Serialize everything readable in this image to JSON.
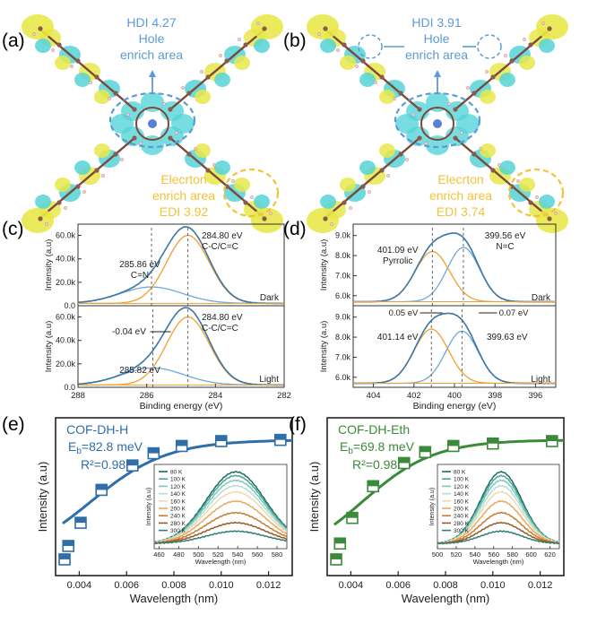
{
  "panels": {
    "a": {
      "label": "(a)",
      "hdi": "HDI 4.27",
      "hole_line1": "Hole",
      "hole_line2": "enrich area",
      "elec_line1": "Elecrton",
      "elec_line2": "enrich area",
      "edi": "EDI 3.92"
    },
    "b": {
      "label": "(b)",
      "hdi": "HDI 3.91",
      "hole_line1": "Hole",
      "hole_line2": "enrich area",
      "elec_line1": "Elecrton",
      "elec_line2": "enrich area",
      "edi": "EDI 3.74"
    }
  },
  "colors": {
    "hole": "#5b9bd5",
    "electron": "#f2c237",
    "fit": "#3d78a8",
    "comp_blue": "#6fa8dc",
    "comp_orange": "#f0a030",
    "raw": "#999999",
    "green": "#3a8a3a"
  },
  "chart_data": [
    {
      "id": "c",
      "type": "line",
      "label": "(c)",
      "xlabel": "Binding energy (eV)",
      "ylabel": "Intensity (a.u)",
      "xlim": [
        288,
        282
      ],
      "xticks": [
        "288",
        "286",
        "284",
        "282"
      ],
      "subplots": [
        {
          "condition": "Dark",
          "ylim": [
            0,
            65000
          ],
          "yticks": [
            "0.0",
            "20.0k",
            "40.0k",
            "60.0k"
          ],
          "peaks": [
            {
              "center": 284.8,
              "amp": 58000,
              "width": 0.62
            },
            {
              "center": 285.86,
              "amp": 14000,
              "width": 0.9
            }
          ],
          "baseline": 2000,
          "annotations": [
            "284.80 eV",
            "C-C/C=C",
            "285.86 eV",
            "C=N"
          ]
        },
        {
          "condition": "Light",
          "ylim": [
            0,
            65000
          ],
          "yticks": [
            "0.0",
            "20.0k",
            "40.0k",
            "60.0k"
          ],
          "peaks": [
            {
              "center": 284.8,
              "amp": 58000,
              "width": 0.62
            },
            {
              "center": 285.82,
              "amp": 14500,
              "width": 0.9
            }
          ],
          "baseline": 2000,
          "annotations": [
            "284.80 eV",
            "C-C/C=C",
            "285.82 eV",
            "-0.04 eV"
          ]
        }
      ]
    },
    {
      "id": "d",
      "type": "line",
      "label": "(d)",
      "xlabel": "Binding energy (eV)",
      "ylabel": "Intensity (a.u)",
      "xlim": [
        405,
        395
      ],
      "xticks": [
        "404",
        "402",
        "400",
        "398",
        "396"
      ],
      "subplots": [
        {
          "condition": "Dark",
          "ylim": [
            5500,
            9300
          ],
          "yticks": [
            "6.0k",
            "7.0k",
            "8.0k",
            "9.0k"
          ],
          "peaks": [
            {
              "center": 401.09,
              "amp": 2500,
              "width": 0.85
            },
            {
              "center": 399.56,
              "amp": 2700,
              "width": 0.8
            }
          ],
          "baseline": 5700,
          "annotations": [
            "401.09 eV",
            "Pyrrolic",
            "399.56 eV",
            "N=C"
          ]
        },
        {
          "condition": "Light",
          "ylim": [
            5500,
            9300
          ],
          "yticks": [
            "6.0k",
            "7.0k",
            "8.0k",
            "9.0k"
          ],
          "peaks": [
            {
              "center": 401.14,
              "amp": 2700,
              "width": 0.85
            },
            {
              "center": 399.63,
              "amp": 2600,
              "width": 0.8
            }
          ],
          "baseline": 5700,
          "annotations": [
            "0.05 eV",
            "0.07 eV",
            "401.14 eV",
            "399.63 eV"
          ]
        }
      ]
    },
    {
      "id": "e",
      "type": "scatter",
      "label": "(e)",
      "name": "COF-DH-H",
      "eb_prefix": "E",
      "eb_sub": "b",
      "eb_value": "=82.8 meV",
      "r2": "R²=0.98",
      "xlabel": "Wavelength (nm)",
      "ylabel": "Intensity (a.u)",
      "xlim": [
        0.003,
        0.013
      ],
      "xticks": [
        "0.004",
        "0.006",
        "0.008",
        "0.010",
        "0.012"
      ],
      "x": [
        0.00338,
        0.00354,
        0.00406,
        0.00494,
        0.00625,
        0.00714,
        0.00833,
        0.01,
        0.0125
      ],
      "y": [
        0.03,
        0.14,
        0.33,
        0.6,
        0.8,
        0.9,
        0.96,
        1.0,
        1.01
      ],
      "fit": {
        "E": 82.8
      },
      "inset": {
        "xlabel": "Wavelength (nm)",
        "ylabel": "Intensity (a.u)",
        "xlim": [
          455,
          590
        ],
        "xticks": [
          "460",
          "480",
          "500",
          "520",
          "540",
          "560",
          "580"
        ],
        "center": 538,
        "sigma": 30,
        "series": [
          {
            "name": "80 K",
            "color": "#1f6b5f",
            "amp": 0.93
          },
          {
            "name": "100 K",
            "color": "#4aa698",
            "amp": 0.88
          },
          {
            "name": "120 K",
            "color": "#7cc8bd",
            "amp": 0.82
          },
          {
            "name": "140 K",
            "color": "#b2ded5",
            "amp": 0.75
          },
          {
            "name": "160 K",
            "color": "#f0d9b0",
            "amp": 0.67
          },
          {
            "name": "200 K",
            "color": "#e8a860",
            "amp": 0.55
          },
          {
            "name": "240 K",
            "color": "#c87a30",
            "amp": 0.4
          },
          {
            "name": "280 K",
            "color": "#9a5a25",
            "amp": 0.27
          },
          {
            "name": "300 K",
            "color": "#2f7f76",
            "amp": 0.16
          }
        ]
      }
    },
    {
      "id": "f",
      "type": "scatter",
      "label": "(f)",
      "name": "COF-DH-Eth",
      "eb_prefix": "E",
      "eb_sub": "b",
      "eb_value": "=69.8 meV",
      "r2": "R²=0.98",
      "xlabel": "Wavelength (nm)",
      "ylabel": "Intensity (a.u)",
      "xlim": [
        0.003,
        0.013
      ],
      "xticks": [
        "0.004",
        "0.006",
        "0.008",
        "0.010",
        "0.012"
      ],
      "x": [
        0.00338,
        0.00354,
        0.00406,
        0.00494,
        0.00625,
        0.00714,
        0.00833,
        0.01,
        0.0125
      ],
      "y": [
        0.03,
        0.16,
        0.37,
        0.63,
        0.82,
        0.91,
        0.96,
        0.98,
        1.0
      ],
      "fit": {
        "E": 69.8
      },
      "inset": {
        "xlabel": "Wavelength (nm)",
        "ylabel": "Intensity (a.u)",
        "xlim": [
          500,
          630
        ],
        "xticks": [
          "500",
          "520",
          "540",
          "560",
          "580",
          "600",
          "620"
        ],
        "center": 568,
        "sigma": 22,
        "series": [
          {
            "name": "80 K",
            "color": "#1f6b5f",
            "amp": 0.93
          },
          {
            "name": "100 K",
            "color": "#4aa698",
            "amp": 0.88
          },
          {
            "name": "120 K",
            "color": "#7cc8bd",
            "amp": 0.82
          },
          {
            "name": "140 K",
            "color": "#b2ded5",
            "amp": 0.75
          },
          {
            "name": "160 K",
            "color": "#f0d9b0",
            "amp": 0.67
          },
          {
            "name": "200 K",
            "color": "#e8a860",
            "amp": 0.55
          },
          {
            "name": "240 K",
            "color": "#c87a30",
            "amp": 0.4
          },
          {
            "name": "280 K",
            "color": "#9a5a25",
            "amp": 0.27
          },
          {
            "name": "300 K",
            "color": "#2f7f76",
            "amp": 0.16
          }
        ]
      }
    }
  ]
}
